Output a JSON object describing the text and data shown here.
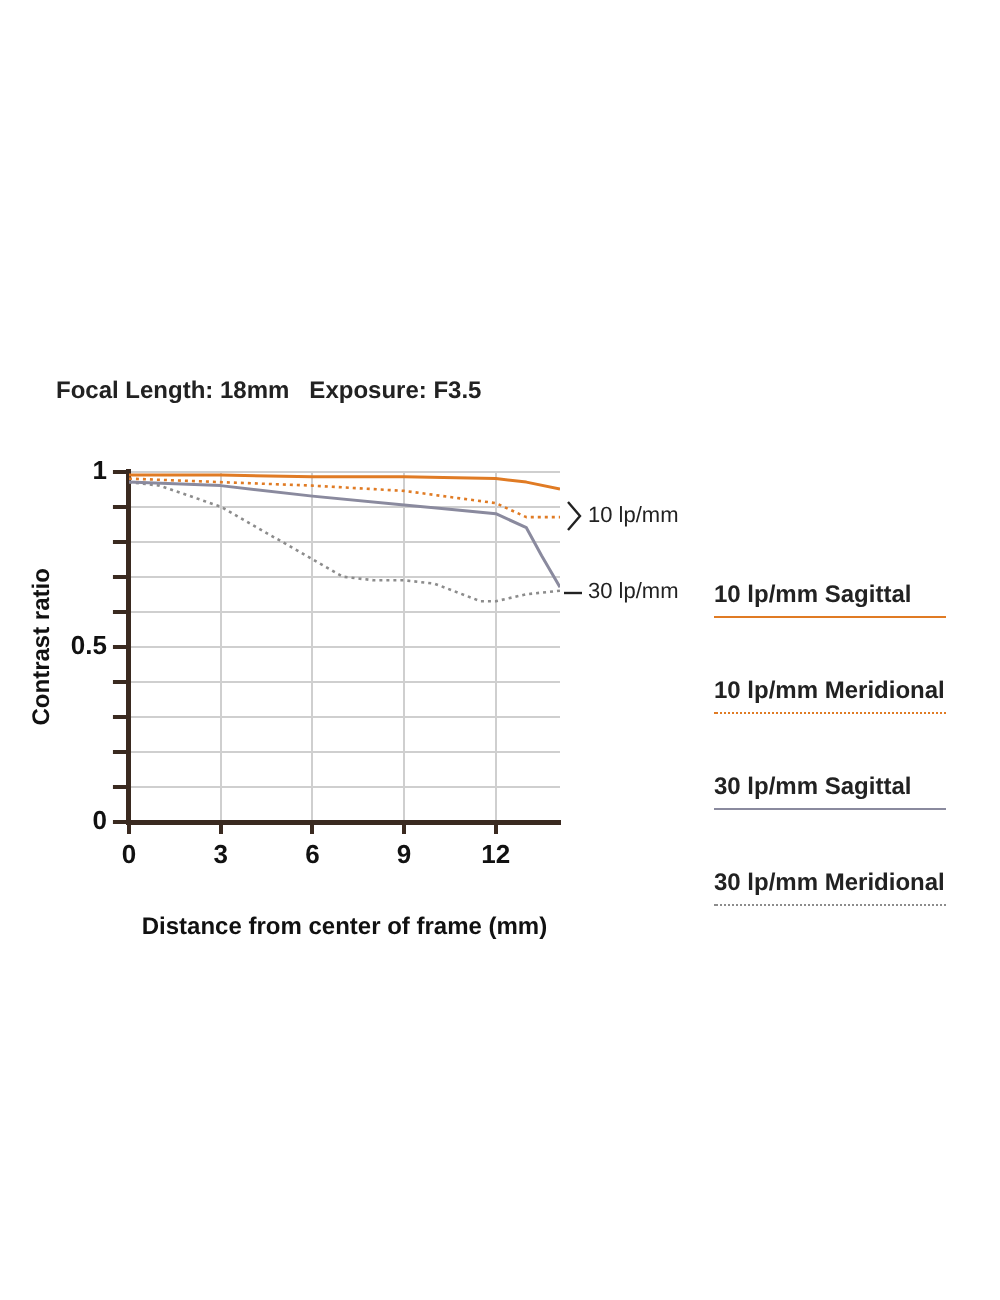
{
  "chart_data": {
    "type": "line",
    "title": "Focal Length: 18mm   Exposure: F3.5",
    "xlabel": "Distance from center of frame (mm)",
    "ylabel": "Contrast ratio",
    "series": [
      {
        "name": "10 lp/mm Sagittal",
        "color": "#e07b24",
        "line_style": "solid",
        "x": [
          0,
          3,
          6,
          9,
          12,
          13,
          14.1
        ],
        "values": [
          0.99,
          0.99,
          0.985,
          0.985,
          0.98,
          0.97,
          0.95
        ]
      },
      {
        "name": "10 lp/mm Meridional",
        "color": "#e07b24",
        "line_style": "dotted",
        "x": [
          0,
          3,
          6,
          9,
          12,
          13,
          14.1
        ],
        "values": [
          0.98,
          0.97,
          0.96,
          0.945,
          0.91,
          0.87,
          0.87
        ]
      },
      {
        "name": "30 lp/mm Sagittal",
        "color": "#8a8a9e",
        "line_style": "solid",
        "x": [
          0,
          3,
          6,
          9,
          12,
          13,
          13.5,
          14.1
        ],
        "values": [
          0.97,
          0.96,
          0.93,
          0.905,
          0.88,
          0.84,
          0.76,
          0.67
        ]
      },
      {
        "name": "30 lp/mm Meridional",
        "color": "#8c8c8c",
        "line_style": "dotted",
        "x": [
          0,
          1,
          3,
          5,
          6,
          7,
          8,
          9,
          10,
          11.5,
          12,
          13,
          14.1
        ],
        "values": [
          0.97,
          0.96,
          0.9,
          0.8,
          0.75,
          0.7,
          0.69,
          0.69,
          0.68,
          0.63,
          0.63,
          0.65,
          0.66
        ]
      }
    ],
    "xlim": [
      0,
      14.1
    ],
    "xticks": [
      0,
      3,
      6,
      9,
      12
    ],
    "ylim": [
      0,
      1
    ],
    "yticks": [
      0,
      {
        "value": 0.1,
        "label": null
      },
      {
        "value": 0.2,
        "label": null
      },
      {
        "value": 0.3,
        "label": null
      },
      {
        "value": 0.4,
        "label": null
      },
      0.5,
      {
        "value": 0.6,
        "label": null
      },
      {
        "value": 0.7,
        "label": null
      },
      {
        "value": 0.8,
        "label": null
      },
      {
        "value": 0.9,
        "label": null
      },
      1
    ],
    "grid": true,
    "legend": "right",
    "marker": "none",
    "annotations": [
      "10 lp/mm",
      "30 lp/mm"
    ]
  }
}
